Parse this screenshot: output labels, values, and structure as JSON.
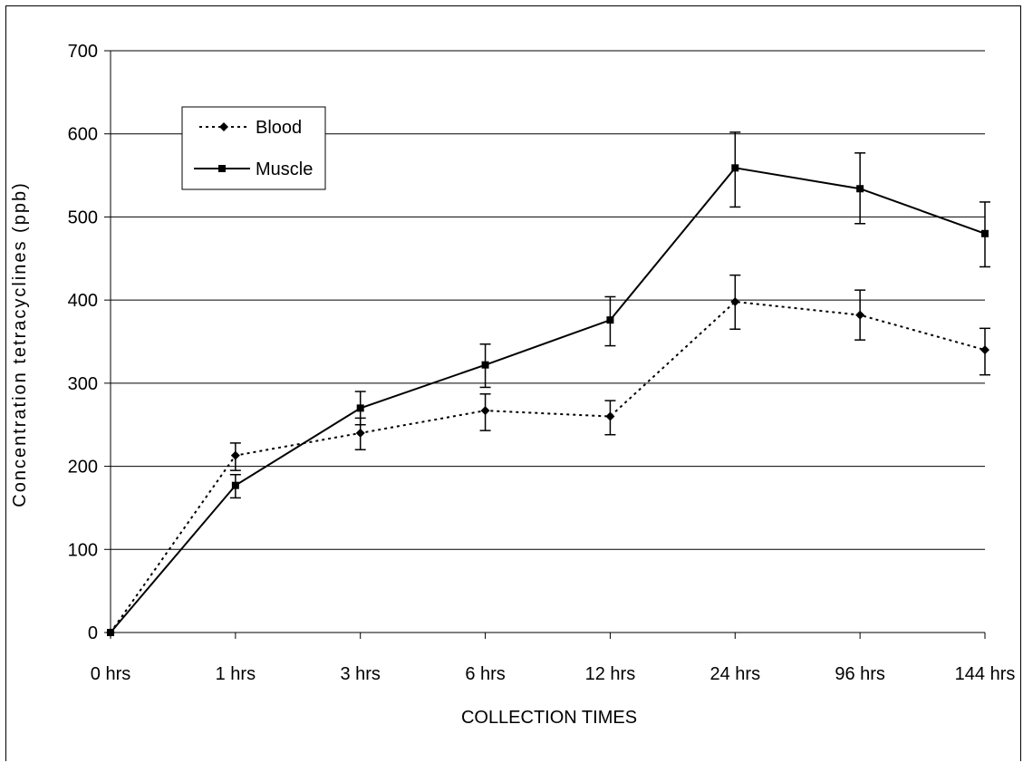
{
  "chart_data": {
    "type": "line",
    "xlabel": "COLLECTION TIMES",
    "ylabel": "Concentration tetracyclines (ppb)",
    "categories": [
      "0 hrs",
      "1 hrs",
      "3 hrs",
      "6 hrs",
      "12 hrs",
      "24 hrs",
      "96 hrs",
      "144 hrs"
    ],
    "ylim": [
      0,
      700
    ],
    "yticks": [
      0,
      100,
      200,
      300,
      400,
      500,
      600,
      700
    ],
    "grid": true,
    "legend_position": "top-left",
    "series": [
      {
        "name": "Blood",
        "style": "dotted",
        "marker": "diamond",
        "color": "#000000",
        "values": [
          0,
          213,
          240,
          267,
          260,
          398,
          382,
          340
        ],
        "err_low": [
          0,
          195,
          220,
          243,
          238,
          365,
          352,
          310
        ],
        "err_high": [
          0,
          228,
          258,
          287,
          279,
          430,
          412,
          366
        ]
      },
      {
        "name": "Muscle",
        "style": "solid",
        "marker": "square",
        "color": "#000000",
        "values": [
          0,
          177,
          270,
          322,
          376,
          559,
          534,
          480
        ],
        "err_low": [
          0,
          162,
          250,
          295,
          345,
          512,
          492,
          440
        ],
        "err_high": [
          0,
          190,
          290,
          347,
          404,
          602,
          577,
          518
        ]
      }
    ]
  }
}
